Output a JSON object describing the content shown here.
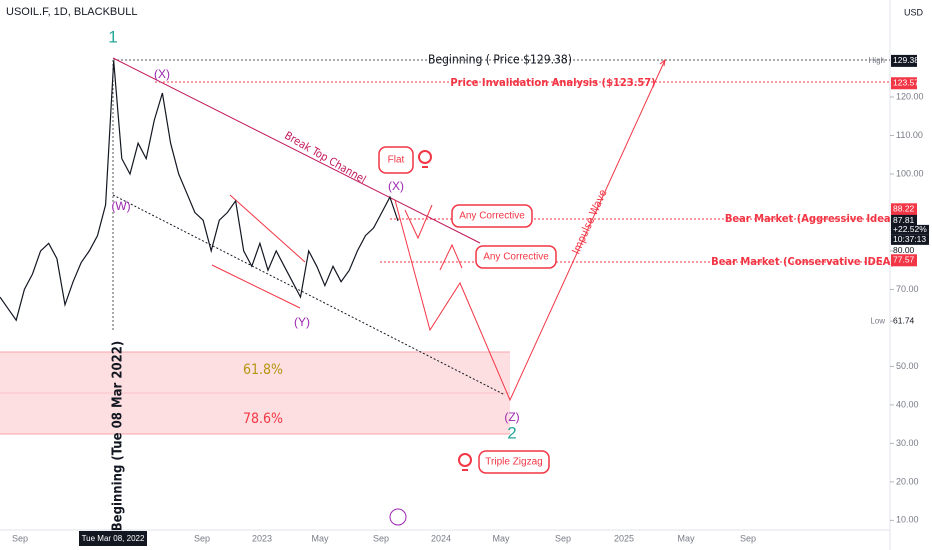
{
  "chart_data": {
    "type": "line",
    "title": "USOIL.F, 1D, BLACKBULL",
    "currency": "USD",
    "color": "#131722",
    "values": [
      68,
      65,
      62,
      70,
      74,
      80,
      82,
      78,
      66,
      72,
      77,
      80,
      84,
      92,
      129.38,
      104,
      100,
      108,
      104,
      114,
      121,
      108,
      100,
      95,
      90,
      88,
      80,
      88,
      90,
      93,
      80,
      76,
      82,
      75,
      80,
      76,
      72,
      68,
      80,
      76,
      71,
      76,
      72,
      75,
      80,
      84,
      86,
      90,
      94,
      87.81
    ],
    "ylim": [
      6.2,
      145.2
    ],
    "yticks": [
      {
        "value": 10,
        "label": "10.00"
      },
      {
        "value": 20,
        "label": "20.00"
      },
      {
        "value": 30,
        "label": "30.00"
      },
      {
        "value": 40,
        "label": "40.00"
      },
      {
        "value": 50,
        "label": "50.00"
      },
      {
        "value": 70,
        "label": "70.00"
      },
      {
        "value": 100,
        "label": "100.00"
      },
      {
        "value": 110,
        "label": "110.00"
      },
      {
        "value": 120,
        "label": "120.00"
      }
    ],
    "x_axis_labels": [
      "Sep",
      "Tue Mar 08, 2022",
      "Sep",
      "2023",
      "May",
      "Sep",
      "2024",
      "May",
      "Sep",
      "2025",
      "May",
      "Sep"
    ],
    "price_labels": [
      {
        "value": 129.38,
        "label": "129.38",
        "tag": "High",
        "color": "#131722"
      },
      {
        "value": 123.57,
        "label": "123.57",
        "color": "#f23645"
      },
      {
        "value": 88.22,
        "label": "88.22",
        "color": "#f23645"
      },
      {
        "value": 87.81,
        "label": "87.81",
        "color": "#131722",
        "extra": [
          "+22.52%",
          "10:37:13"
        ]
      },
      {
        "value": 80,
        "label": "80.00",
        "color": "#ffffff"
      },
      {
        "value": 77.57,
        "label": "77.57",
        "color": "#f23645"
      },
      {
        "value": 61.74,
        "label": "61.74",
        "tag": "Low",
        "color": "#ffffff"
      }
    ],
    "annotations": {
      "wave_1": "1",
      "wave_2": "2",
      "x1": "(X)",
      "w": "(W)",
      "y": "(Y)",
      "x2": "(X)",
      "z": "(Z)",
      "beginning_price": "Beginning ( Price $129.38)",
      "invalidation": "Price Invalidation Analysis ($123.57)",
      "break_channel": "Break Top Channel",
      "flat": "Flat",
      "corrective_1": "Any Corrective",
      "corrective_2": "Any Corrective",
      "triple_zigzag": "Triple Zigzag",
      "impulse": "Impulse Wave",
      "bear_aggressive": "Bear Market (Aggressive Idea)",
      "bear_conservative": "Bear Market (Conservative IDEA)",
      "fib_618": "61.8%",
      "fib_786": "78.6%",
      "beginning_date": "Beginning (Tue 08 Mar 2022)"
    }
  }
}
